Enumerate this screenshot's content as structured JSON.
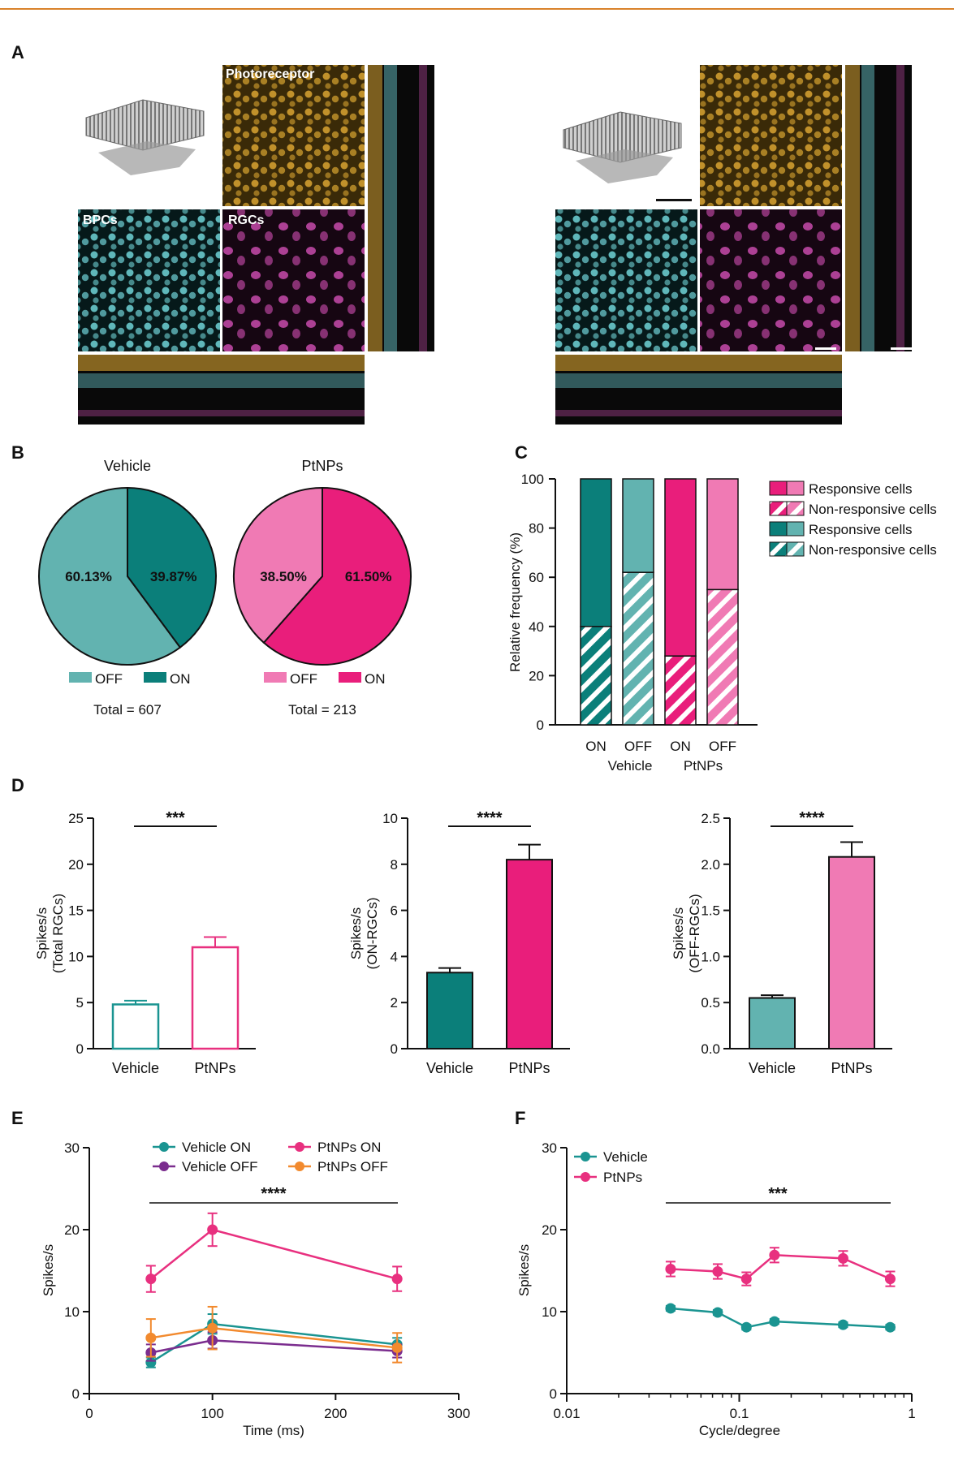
{
  "panel_letters": {
    "a": "A",
    "b": "B",
    "c": "C",
    "d": "D",
    "e": "E",
    "f": "F"
  },
  "panel_a": {
    "labels": [
      "Photoreceptor",
      "BPCs",
      "RGCs"
    ],
    "colors": {
      "photoreceptor": "#d9a431",
      "bpc": "#6fd2d6",
      "rgc": "#d24fb4",
      "dark": "#0a0a0a"
    }
  },
  "colors": {
    "vehicle_off": "#62b3b0",
    "vehicle_on": "#0b7f7a",
    "ptnps_off": "#f07ab4",
    "ptnps_on": "#e91e7b",
    "vehicle_line": "#1a9491",
    "vehicle_off_line": "#7b2d8e",
    "ptnps_line": "#e8307f",
    "ptnps_off_line": "#f28a2e"
  },
  "panel_b": {
    "pies": [
      {
        "title": "Vehicle",
        "off_pct": "60.13%",
        "on_pct": "39.87%",
        "off": 60.13,
        "on": 39.87,
        "legend_off": "OFF",
        "legend_on": "ON",
        "total": "Total = 607"
      },
      {
        "title": "PtNPs",
        "off_pct": "38.50%",
        "on_pct": "61.50%",
        "off": 38.5,
        "on": 61.5,
        "legend_off": "OFF",
        "legend_on": "ON",
        "total": "Total = 213"
      }
    ]
  },
  "chart_data": [
    {
      "type": "pie",
      "title": "Vehicle",
      "series": [
        {
          "name": "OFF",
          "value": 60.13
        },
        {
          "name": "ON",
          "value": 39.87
        }
      ]
    },
    {
      "type": "pie",
      "title": "PtNPs",
      "series": [
        {
          "name": "OFF",
          "value": 38.5
        },
        {
          "name": "ON",
          "value": 61.5
        }
      ]
    },
    {
      "type": "bar",
      "stacked": true,
      "categories": [
        "ON",
        "OFF",
        "ON",
        "OFF"
      ],
      "groups": [
        "Vehicle",
        "PtNPs"
      ],
      "ylabel": "Relative frequency (%)",
      "ylim": [
        0,
        100
      ],
      "yticks": [
        "0",
        "20",
        "40",
        "60",
        "80",
        "100"
      ],
      "series": [
        {
          "name": "Non-responsive cells",
          "values": [
            40,
            62,
            28,
            55
          ]
        },
        {
          "name": "Responsive cells",
          "values": [
            60,
            38,
            72,
            45
          ]
        }
      ],
      "legend": [
        "Responsive cells",
        "Non-responsive cells",
        "Responsive cells",
        "Non-responsive cells"
      ]
    },
    {
      "type": "bar",
      "categories": [
        "Vehicle",
        "PtNPs"
      ],
      "values": [
        4.8,
        11.0
      ],
      "errors": [
        0.4,
        1.1
      ],
      "ylabel": "Spikes/s (Total RGCs)",
      "ylim": [
        0,
        25
      ],
      "yticks": [
        "0",
        "5",
        "10",
        "15",
        "20",
        "25"
      ],
      "significance": "***"
    },
    {
      "type": "bar",
      "categories": [
        "Vehicle",
        "PtNPs"
      ],
      "values": [
        3.3,
        8.2
      ],
      "errors": [
        0.2,
        0.65
      ],
      "ylabel": "Spikes/s (ON-RGCs)",
      "ylim": [
        0,
        10
      ],
      "yticks": [
        "0",
        "2",
        "4",
        "6",
        "8",
        "10"
      ],
      "significance": "****"
    },
    {
      "type": "bar",
      "categories": [
        "Vehicle",
        "PtNPs"
      ],
      "values": [
        0.55,
        2.08
      ],
      "errors": [
        0.03,
        0.16
      ],
      "ylabel": "Spikes/s (OFF-RGCs)",
      "ylim": [
        0,
        2.5
      ],
      "yticks": [
        "0.0",
        "0.5",
        "1.0",
        "1.5",
        "2.0",
        "2.5"
      ],
      "significance": "****"
    },
    {
      "type": "line",
      "xlabel": "Time (ms)",
      "ylabel": "Spikes/s",
      "xlim": [
        0,
        300
      ],
      "ylim": [
        0,
        30
      ],
      "xticks": [
        "0",
        "100",
        "200",
        "300"
      ],
      "yticks": [
        "0",
        "10",
        "20",
        "30"
      ],
      "significance": "****",
      "x": [
        50,
        100,
        250
      ],
      "series": [
        {
          "name": "Vehicle ON",
          "values": [
            3.8,
            8.5,
            6.0
          ],
          "errors": [
            0.6,
            1.2,
            0.8
          ]
        },
        {
          "name": "Vehicle OFF",
          "values": [
            5.0,
            6.5,
            5.2
          ],
          "errors": [
            1.0,
            1.0,
            0.8
          ]
        },
        {
          "name": "PtNPs ON",
          "values": [
            14.0,
            20.0,
            14.0
          ],
          "errors": [
            1.6,
            2.0,
            1.5
          ]
        },
        {
          "name": "PtNPs OFF",
          "values": [
            6.8,
            8.0,
            5.6
          ],
          "errors": [
            2.3,
            2.6,
            1.8
          ]
        }
      ]
    },
    {
      "type": "line",
      "log_x": true,
      "xlabel": "Cycle/degree",
      "ylabel": "Spikes/s",
      "xlim": [
        0.01,
        1
      ],
      "ylim": [
        0,
        30
      ],
      "xticks": [
        "0.01",
        "0.1",
        "1"
      ],
      "yticks": [
        "0",
        "10",
        "20",
        "30"
      ],
      "significance": "***",
      "x": [
        0.04,
        0.075,
        0.11,
        0.16,
        0.4,
        0.75
      ],
      "series": [
        {
          "name": "Vehicle",
          "values": [
            10.4,
            9.9,
            8.1,
            8.8,
            8.4,
            8.1
          ],
          "errors": [
            0.3,
            0.3,
            0.3,
            0.3,
            0.3,
            0.3
          ]
        },
        {
          "name": "PtNPs",
          "values": [
            15.2,
            14.9,
            14.0,
            16.9,
            16.5,
            14.0
          ],
          "errors": [
            0.9,
            0.9,
            0.8,
            0.9,
            0.9,
            0.9
          ]
        }
      ]
    }
  ]
}
